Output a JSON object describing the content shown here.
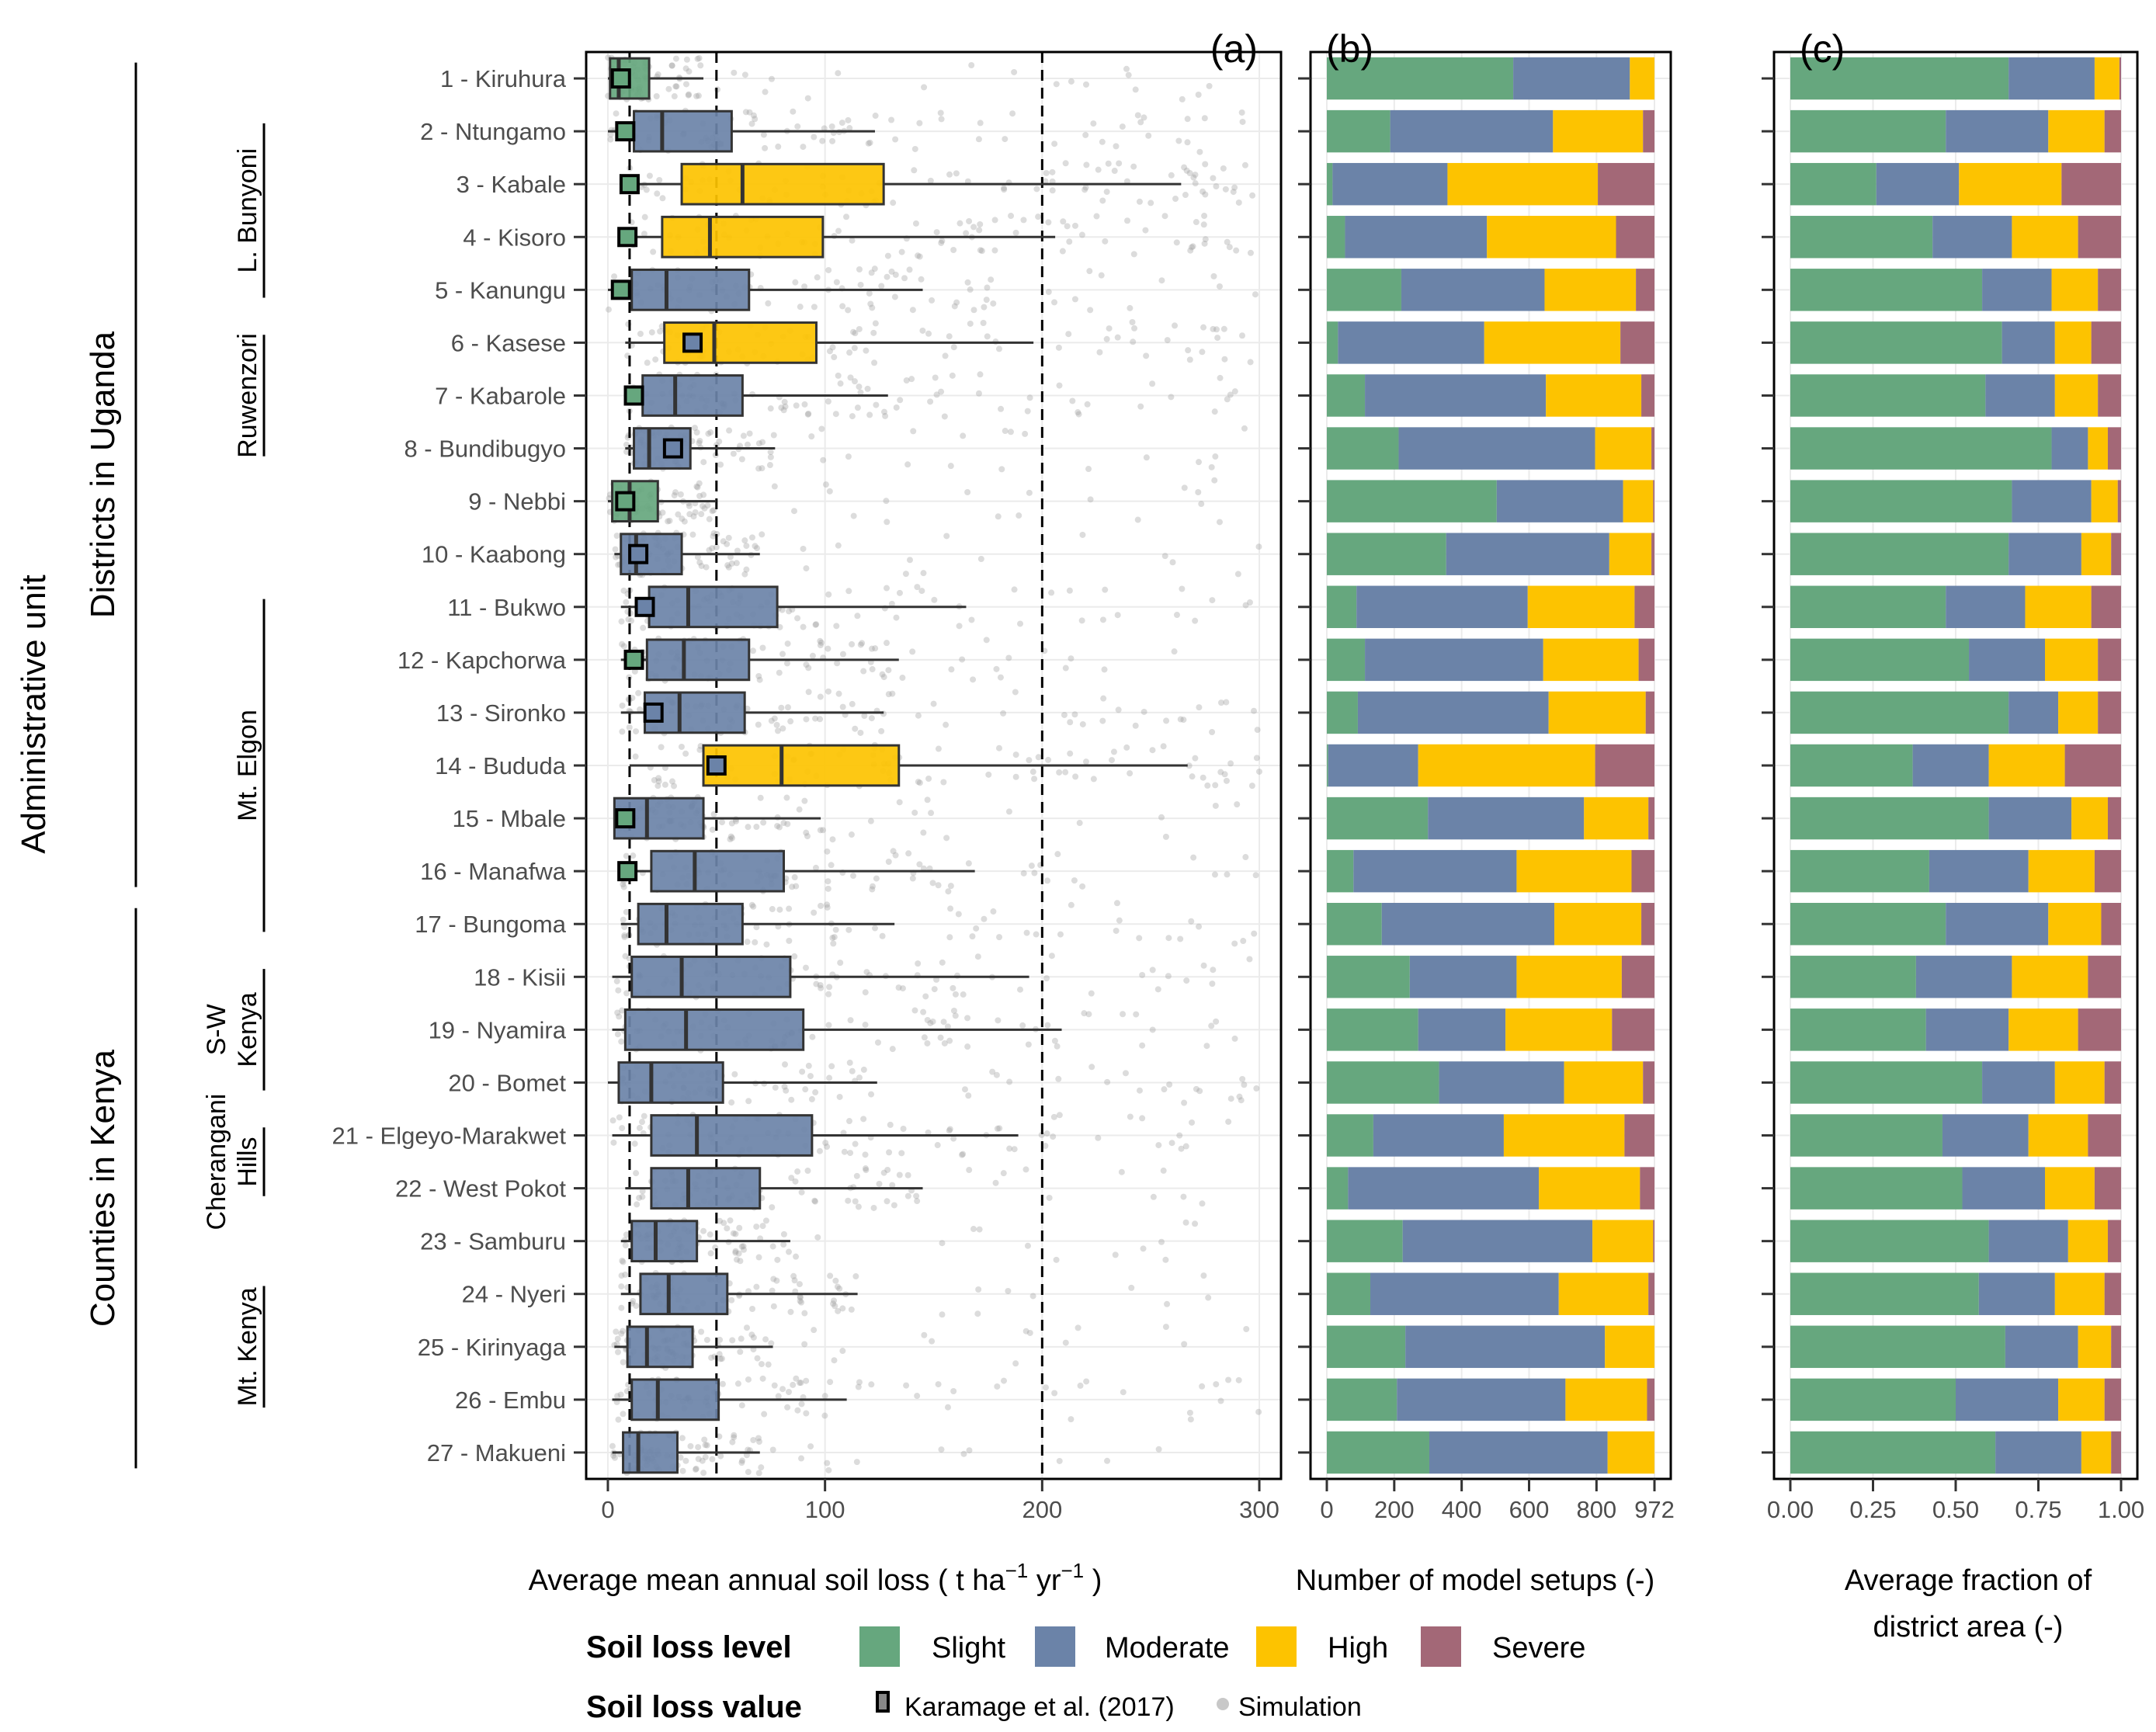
{
  "chart_data": [
    {
      "panel_label": "(a)",
      "type": "boxplot",
      "xlabel": "Average mean annual soil loss ( t ha^-1 yr^-1 )",
      "xlabel_parts": {
        "main": "Average mean annual soil loss ( t ha",
        "sup1": "−1",
        "mid": " yr",
        "sup2": "−1",
        "end": " )"
      },
      "xlim": [
        -10,
        310
      ],
      "xticks": [
        0,
        100,
        200,
        300
      ],
      "xtick_labels": [
        "0",
        "100",
        "200",
        "300"
      ],
      "reference_lines": [
        10,
        50,
        200
      ],
      "grid": true,
      "fields": [
        "whisker_low",
        "q1",
        "median",
        "q3",
        "whisker_high",
        "karamage_2017",
        "level"
      ],
      "boxes": [
        [
          0,
          1,
          5,
          19,
          44,
          6,
          "Slight"
        ],
        [
          0,
          12,
          25,
          57,
          123,
          8,
          "Moderate"
        ],
        [
          10,
          34,
          62,
          127,
          264,
          10,
          "High"
        ],
        [
          8,
          25,
          47,
          99,
          206,
          9,
          "High"
        ],
        [
          0,
          11,
          27,
          65,
          145,
          6,
          "Moderate"
        ],
        [
          8,
          26,
          49,
          96,
          196,
          39,
          "High"
        ],
        [
          8,
          16,
          31,
          62,
          129,
          12,
          "Moderate"
        ],
        [
          8,
          12,
          19,
          38,
          77,
          30,
          "Moderate"
        ],
        [
          0,
          2,
          10,
          23,
          50,
          8,
          "Slight"
        ],
        [
          3,
          6,
          13,
          34,
          70,
          14,
          "Moderate"
        ],
        [
          6,
          19,
          37,
          78,
          165,
          17,
          "Moderate"
        ],
        [
          6,
          18,
          35,
          65,
          134,
          12,
          "Moderate"
        ],
        [
          6,
          17,
          33,
          63,
          127,
          21,
          "Moderate"
        ],
        [
          10,
          44,
          80,
          134,
          267,
          50,
          "High"
        ],
        [
          4,
          3,
          18,
          44,
          98,
          8,
          "Moderate"
        ],
        [
          6,
          20,
          40,
          81,
          169,
          9,
          "Moderate"
        ],
        [
          6,
          14,
          27,
          62,
          132,
          null,
          "Moderate"
        ],
        [
          2,
          11,
          34,
          84,
          194,
          null,
          "Moderate"
        ],
        [
          2,
          8,
          36,
          90,
          209,
          null,
          "Moderate"
        ],
        [
          0,
          5,
          20,
          53,
          124,
          null,
          "Moderate"
        ],
        [
          2,
          20,
          41,
          94,
          189,
          null,
          "Moderate"
        ],
        [
          8,
          20,
          37,
          70,
          145,
          null,
          "Moderate"
        ],
        [
          6,
          11,
          22,
          41,
          84,
          null,
          "Moderate"
        ],
        [
          6,
          15,
          28,
          55,
          115,
          null,
          "Moderate"
        ],
        [
          3,
          9,
          18,
          39,
          76,
          null,
          "Moderate"
        ],
        [
          2,
          11,
          23,
          51,
          110,
          null,
          "Moderate"
        ],
        [
          2,
          7,
          14,
          32,
          70,
          null,
          "Moderate"
        ]
      ],
      "karamage_level": [
        "Slight",
        "Slight",
        "Slight",
        "Slight",
        "Slight",
        "Moderate",
        "Slight",
        "Moderate",
        "Slight",
        "Moderate",
        "Moderate",
        "Slight",
        "Moderate",
        "Moderate",
        "Slight",
        "Slight"
      ]
    },
    {
      "panel_label": "(b)",
      "type": "bar",
      "orientation": "horizontal-stacked",
      "xlabel": "Number of model setups (-)",
      "xlim": [
        0,
        972
      ],
      "xticks": [
        0,
        200,
        400,
        600,
        800,
        972
      ],
      "xtick_labels": [
        "0",
        "200",
        "400",
        "600",
        "800",
        "972"
      ],
      "series": [
        {
          "name": "Slight",
          "values": [
            553,
            188,
            17,
            54,
            221,
            33,
            113,
            213,
            504,
            354,
            88,
            113,
            92,
            4,
            300,
            79,
            163,
            246,
            271,
            333,
            138,
            63,
            225,
            129,
            233,
            208,
            304
          ]
        },
        {
          "name": "Moderate",
          "values": [
            346,
            483,
            341,
            421,
            425,
            434,
            537,
            583,
            375,
            484,
            508,
            529,
            566,
            267,
            463,
            484,
            512,
            317,
            259,
            371,
            387,
            566,
            563,
            559,
            592,
            500,
            529
          ]
        },
        {
          "name": "High",
          "values": [
            73,
            267,
            446,
            383,
            271,
            404,
            283,
            167,
            89,
            125,
            317,
            283,
            288,
            525,
            191,
            341,
            258,
            312,
            316,
            234,
            358,
            300,
            180,
            266,
            147,
            242,
            139
          ]
        },
        {
          "name": "Severe",
          "values": [
            0,
            34,
            168,
            114,
            55,
            101,
            39,
            9,
            4,
            9,
            59,
            47,
            26,
            176,
            18,
            68,
            39,
            97,
            126,
            34,
            89,
            43,
            4,
            18,
            0,
            22,
            0
          ]
        }
      ]
    },
    {
      "panel_label": "(c)",
      "type": "bar",
      "orientation": "horizontal-stacked",
      "xlabel_lines": [
        "Average fraction of",
        "district area (-)"
      ],
      "xlim": [
        0,
        1
      ],
      "xticks": [
        0,
        0.25,
        0.5,
        0.75,
        1.0
      ],
      "xtick_labels": [
        "0.00",
        "0.25",
        "0.50",
        "0.75",
        "1.00"
      ],
      "series": [
        {
          "name": "Slight",
          "values": [
            0.66,
            0.47,
            0.26,
            0.43,
            0.58,
            0.64,
            0.59,
            0.79,
            0.67,
            0.66,
            0.47,
            0.54,
            0.66,
            0.37,
            0.6,
            0.42,
            0.47,
            0.38,
            0.41,
            0.58,
            0.46,
            0.52,
            0.6,
            0.57,
            0.65,
            0.5,
            0.62
          ]
        },
        {
          "name": "Moderate",
          "values": [
            0.26,
            0.31,
            0.25,
            0.24,
            0.21,
            0.16,
            0.21,
            0.11,
            0.24,
            0.22,
            0.24,
            0.23,
            0.15,
            0.23,
            0.25,
            0.3,
            0.31,
            0.29,
            0.25,
            0.22,
            0.26,
            0.25,
            0.24,
            0.23,
            0.22,
            0.31,
            0.26
          ]
        },
        {
          "name": "High",
          "values": [
            0.075,
            0.17,
            0.31,
            0.2,
            0.14,
            0.11,
            0.13,
            0.06,
            0.08,
            0.09,
            0.2,
            0.16,
            0.12,
            0.23,
            0.11,
            0.2,
            0.16,
            0.23,
            0.21,
            0.15,
            0.18,
            0.15,
            0.12,
            0.15,
            0.1,
            0.14,
            0.09
          ]
        },
        {
          "name": "Severe",
          "values": [
            0.005,
            0.05,
            0.18,
            0.13,
            0.07,
            0.09,
            0.07,
            0.04,
            0.01,
            0.03,
            0.09,
            0.07,
            0.07,
            0.17,
            0.04,
            0.08,
            0.06,
            0.1,
            0.13,
            0.05,
            0.1,
            0.08,
            0.04,
            0.05,
            0.03,
            0.05,
            0.03
          ]
        }
      ]
    }
  ],
  "categories": [
    "1 - Kiruhura",
    "2 - Ntungamo",
    "3 - Kabale",
    "4 - Kisoro",
    "5 - Kanungu",
    "6 - Kasese",
    "7 - Kabarole",
    "8 - Bundibugyo",
    "9 - Nebbi",
    "10 - Kaabong",
    "11 - Bukwo",
    "12 - Kapchorwa",
    "13 - Sironko",
    "14 - Bududa",
    "15 - Mbale",
    "16 - Manafwa",
    "17 - Bungoma",
    "18 - Kisii",
    "19 - Nyamira",
    "20 - Bomet",
    "21 - Elgeyo-Marakwet",
    "22 - West Pokot",
    "23 - Samburu",
    "24 - Nyeri",
    "25 - Kirinyaga",
    "26 - Embu",
    "27 - Makueni"
  ],
  "y_axis_title": "Administrative unit",
  "country_groups": [
    {
      "label": "Districts in Uganda",
      "from": 1,
      "to": 16
    },
    {
      "label": "Counties in Kenya",
      "from": 17,
      "to": 27
    }
  ],
  "region_groups": [
    {
      "label_lines": [
        "L. Bunyoni"
      ],
      "from": 2,
      "to": 5
    },
    {
      "label_lines": [
        "Ruwenzori"
      ],
      "from": 6,
      "to": 8
    },
    {
      "label_lines": [
        "Mt. Elgon"
      ],
      "from": 11,
      "to": 17
    },
    {
      "label_lines": [
        "S-W",
        "Kenya"
      ],
      "from": 18,
      "to": 20
    },
    {
      "label_lines": [
        "Cherangani",
        "Hills"
      ],
      "from": 21,
      "to": 22
    },
    {
      "label_lines": [
        "Mt. Kenya"
      ],
      "from": 24,
      "to": 26
    }
  ],
  "colors": {
    "Slight": "#66a77e",
    "Moderate": "#6b83a8",
    "High": "#fdc300",
    "Severe": "#a36877",
    "points": "#9a9a9a"
  },
  "legend": {
    "level_title": "Soil loss level",
    "levels": [
      "Slight",
      "Moderate",
      "High",
      "Severe"
    ],
    "value_title": "Soil loss value",
    "value_items": [
      "Karamage et al. (2017)",
      "Simulation"
    ]
  }
}
